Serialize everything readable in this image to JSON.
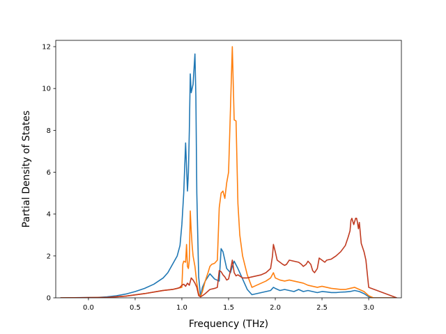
{
  "chart_data": {
    "type": "line",
    "xlabel": "Frequency (THz)",
    "ylabel": "Partial Density of States",
    "xlim": [
      -0.35,
      3.35
    ],
    "ylim": [
      0,
      12.3
    ],
    "x_ticks": [
      0.0,
      0.5,
      1.0,
      1.5,
      2.0,
      2.5,
      3.0
    ],
    "x_tick_labels": [
      "0.0",
      "0.5",
      "1.0",
      "1.5",
      "2.0",
      "2.5",
      "3.0"
    ],
    "y_ticks": [
      0,
      2,
      4,
      6,
      8,
      10,
      12
    ],
    "y_tick_labels": [
      "0",
      "2",
      "4",
      "6",
      "8",
      "10",
      "12"
    ],
    "grid": false,
    "legend": "none",
    "series": [
      {
        "color": "#1f77b4",
        "x": [
          -0.3,
          0.1,
          0.2,
          0.3,
          0.4,
          0.5,
          0.6,
          0.7,
          0.8,
          0.85,
          0.9,
          0.95,
          0.98,
          1.0,
          1.02,
          1.04,
          1.06,
          1.07,
          1.08,
          1.09,
          1.1,
          1.12,
          1.14,
          1.15,
          1.16,
          1.18,
          1.2,
          1.22,
          1.25,
          1.3,
          1.35,
          1.4,
          1.42,
          1.44,
          1.46,
          1.48,
          1.5,
          1.52,
          1.54,
          1.56,
          1.6,
          1.65,
          1.7,
          1.75,
          1.8,
          1.85,
          1.9,
          1.95,
          1.98,
          2.0,
          2.05,
          2.1,
          2.15,
          2.2,
          2.25,
          2.3,
          2.35,
          2.4,
          2.45,
          2.5,
          2.55,
          2.6,
          2.65,
          2.7,
          2.75,
          2.8,
          2.85,
          2.9,
          2.95,
          3.0,
          3.05,
          3.3
        ],
        "y": [
          0.0,
          0.02,
          0.05,
          0.1,
          0.18,
          0.3,
          0.45,
          0.65,
          0.95,
          1.2,
          1.6,
          2.0,
          2.5,
          3.5,
          5.0,
          7.4,
          5.1,
          6.0,
          8.0,
          10.7,
          9.8,
          10.2,
          11.65,
          9.6,
          5.0,
          1.0,
          0.05,
          0.5,
          0.8,
          1.15,
          0.9,
          0.8,
          2.35,
          2.2,
          1.8,
          1.4,
          1.3,
          1.2,
          1.5,
          1.75,
          1.4,
          0.9,
          0.4,
          0.15,
          0.2,
          0.25,
          0.3,
          0.35,
          0.5,
          0.45,
          0.35,
          0.4,
          0.35,
          0.3,
          0.4,
          0.3,
          0.35,
          0.3,
          0.25,
          0.3,
          0.28,
          0.25,
          0.25,
          0.27,
          0.28,
          0.3,
          0.35,
          0.3,
          0.2,
          0.05,
          0.0,
          0.0
        ]
      },
      {
        "color": "#ff7f0e",
        "x": [
          -0.3,
          0.2,
          0.4,
          0.6,
          0.8,
          0.9,
          0.95,
          1.0,
          1.01,
          1.02,
          1.04,
          1.05,
          1.06,
          1.07,
          1.08,
          1.09,
          1.1,
          1.11,
          1.12,
          1.14,
          1.16,
          1.18,
          1.2,
          1.22,
          1.25,
          1.28,
          1.3,
          1.32,
          1.35,
          1.38,
          1.4,
          1.42,
          1.44,
          1.46,
          1.48,
          1.5,
          1.52,
          1.54,
          1.56,
          1.58,
          1.6,
          1.62,
          1.65,
          1.7,
          1.75,
          1.8,
          1.85,
          1.9,
          1.95,
          1.98,
          2.0,
          2.05,
          2.1,
          2.15,
          2.2,
          2.25,
          2.3,
          2.35,
          2.4,
          2.45,
          2.5,
          2.55,
          2.6,
          2.7,
          2.75,
          2.8,
          2.85,
          2.9,
          2.95,
          3.0,
          3.05,
          3.3
        ],
        "y": [
          0.0,
          0.02,
          0.08,
          0.2,
          0.35,
          0.4,
          0.45,
          0.5,
          1.6,
          1.75,
          1.7,
          2.55,
          1.5,
          1.4,
          1.8,
          4.15,
          3.2,
          2.5,
          2.0,
          1.5,
          0.7,
          0.2,
          0.05,
          0.3,
          0.8,
          1.2,
          1.5,
          1.6,
          1.65,
          1.8,
          4.3,
          5.0,
          5.1,
          4.75,
          5.5,
          6.0,
          9.0,
          12.0,
          8.5,
          8.45,
          4.5,
          3.0,
          2.0,
          1.1,
          0.5,
          0.6,
          0.7,
          0.8,
          0.95,
          1.2,
          0.95,
          0.85,
          0.8,
          0.85,
          0.8,
          0.75,
          0.7,
          0.6,
          0.55,
          0.5,
          0.55,
          0.5,
          0.45,
          0.4,
          0.4,
          0.45,
          0.5,
          0.4,
          0.3,
          0.1,
          0.0,
          0.0
        ]
      },
      {
        "color": "#c03a20",
        "x": [
          -0.3,
          0.2,
          0.4,
          0.6,
          0.8,
          0.9,
          0.95,
          0.98,
          1.0,
          1.02,
          1.04,
          1.06,
          1.08,
          1.1,
          1.12,
          1.14,
          1.16,
          1.18,
          1.2,
          1.22,
          1.25,
          1.3,
          1.35,
          1.38,
          1.4,
          1.42,
          1.44,
          1.46,
          1.48,
          1.5,
          1.52,
          1.54,
          1.56,
          1.58,
          1.6,
          1.65,
          1.7,
          1.75,
          1.8,
          1.85,
          1.9,
          1.95,
          1.97,
          1.98,
          2.0,
          2.02,
          2.05,
          2.08,
          2.1,
          2.12,
          2.15,
          2.2,
          2.25,
          2.28,
          2.3,
          2.33,
          2.35,
          2.38,
          2.4,
          2.42,
          2.45,
          2.47,
          2.5,
          2.53,
          2.55,
          2.6,
          2.65,
          2.7,
          2.75,
          2.78,
          2.8,
          2.81,
          2.82,
          2.84,
          2.86,
          2.87,
          2.88,
          2.89,
          2.9,
          2.92,
          2.95,
          2.97,
          3.0,
          3.3
        ],
        "y": [
          0.0,
          0.02,
          0.08,
          0.2,
          0.35,
          0.4,
          0.45,
          0.5,
          0.6,
          0.65,
          0.55,
          0.7,
          0.6,
          0.95,
          0.85,
          0.7,
          0.5,
          0.1,
          0.05,
          0.1,
          0.2,
          0.4,
          0.45,
          0.5,
          1.3,
          1.25,
          1.1,
          1.0,
          0.85,
          0.9,
          1.3,
          1.8,
          1.2,
          1.05,
          1.1,
          0.95,
          0.95,
          1.0,
          1.05,
          1.1,
          1.2,
          1.4,
          2.0,
          2.55,
          2.2,
          1.8,
          1.7,
          1.6,
          1.55,
          1.6,
          1.8,
          1.75,
          1.7,
          1.6,
          1.5,
          1.6,
          1.75,
          1.6,
          1.3,
          1.2,
          1.4,
          1.9,
          1.8,
          1.7,
          1.8,
          1.85,
          2.0,
          2.2,
          2.5,
          2.9,
          3.2,
          3.7,
          3.8,
          3.5,
          3.8,
          3.8,
          3.6,
          3.3,
          3.6,
          2.6,
          2.2,
          1.8,
          0.5,
          0.0
        ]
      }
    ]
  }
}
